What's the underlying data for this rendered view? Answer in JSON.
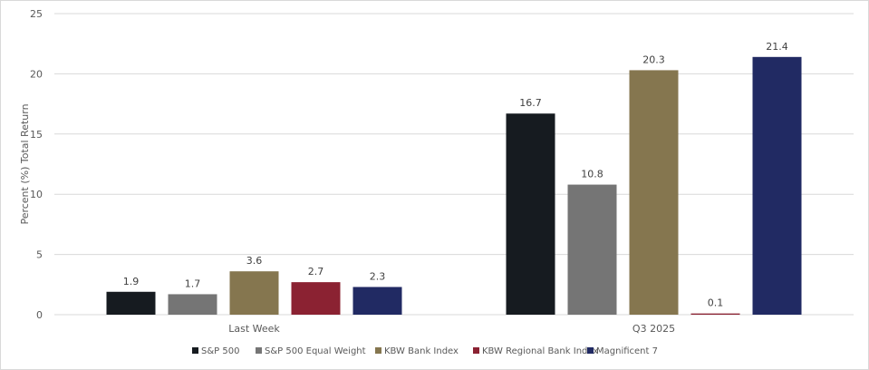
{
  "chart_data": {
    "type": "bar",
    "title": "",
    "xlabel": "",
    "ylabel": "Percent (%) Total Return",
    "ylim": [
      0,
      25
    ],
    "yticks": [
      0,
      5,
      10,
      15,
      20,
      25
    ],
    "grid": true,
    "legend_position": "bottom",
    "categories": [
      "Last Week",
      "Q3 2025"
    ],
    "series": [
      {
        "name": "S&P 500",
        "color": "#161b20",
        "values": [
          1.9,
          16.7
        ]
      },
      {
        "name": "S&P 500 Equal Weight",
        "color": "#757575",
        "values": [
          1.7,
          10.8
        ]
      },
      {
        "name": "KBW Bank Index",
        "color": "#85764f",
        "values": [
          3.6,
          20.3
        ]
      },
      {
        "name": "KBW Regional Bank Index",
        "color": "#8b2232",
        "values": [
          2.7,
          0.1
        ]
      },
      {
        "name": "Magnificent 7",
        "color": "#212a63",
        "values": [
          2.3,
          21.4
        ]
      }
    ]
  }
}
